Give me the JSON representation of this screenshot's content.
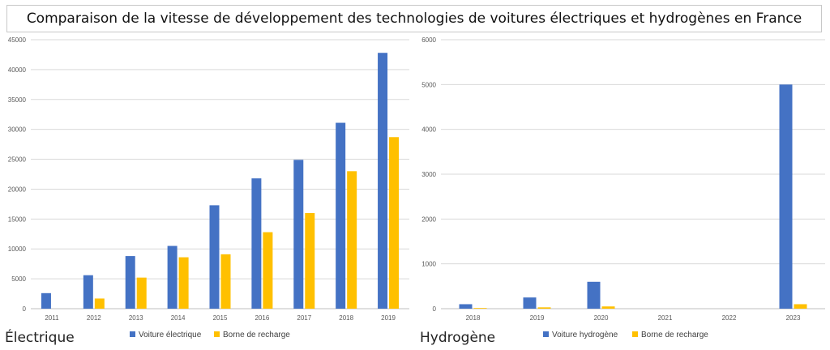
{
  "title": "Comparaison de la vitesse de développement des technologies de voitures électriques et hydrogènes en France",
  "colors": {
    "blue": "#4472C4",
    "yellow": "#FFC000",
    "grid": "#d9d9d9",
    "axis": "#bfbfbf"
  },
  "chart_data": [
    {
      "type": "bar",
      "label": "Électrique",
      "categories": [
        "2011",
        "2012",
        "2013",
        "2014",
        "2015",
        "2016",
        "2017",
        "2018",
        "2019"
      ],
      "series": [
        {
          "name": "Voiture électrique",
          "values": [
            2600,
            5600,
            8800,
            10500,
            17300,
            21800,
            24900,
            31100,
            42800
          ]
        },
        {
          "name": "Borne de recharge",
          "values": [
            0,
            1700,
            5200,
            8600,
            9100,
            12800,
            16000,
            23000,
            28700
          ]
        }
      ],
      "ylim": [
        0,
        45000
      ],
      "yticks": [
        0,
        5000,
        10000,
        15000,
        20000,
        25000,
        30000,
        35000,
        40000,
        45000
      ],
      "grid": true,
      "legend": "bottom"
    },
    {
      "type": "bar",
      "label": "Hydrogène",
      "categories": [
        "2018",
        "2019",
        "2020",
        "2021",
        "2022",
        "2023"
      ],
      "series": [
        {
          "name": "Voiture hydrogène",
          "values": [
            100,
            250,
            600,
            0,
            0,
            5000
          ]
        },
        {
          "name": "Borne de recharge",
          "values": [
            15,
            30,
            50,
            0,
            0,
            100
          ]
        }
      ],
      "ylim": [
        0,
        6000
      ],
      "yticks": [
        0,
        1000,
        2000,
        3000,
        4000,
        5000,
        6000
      ],
      "grid": true,
      "legend": "bottom"
    }
  ]
}
